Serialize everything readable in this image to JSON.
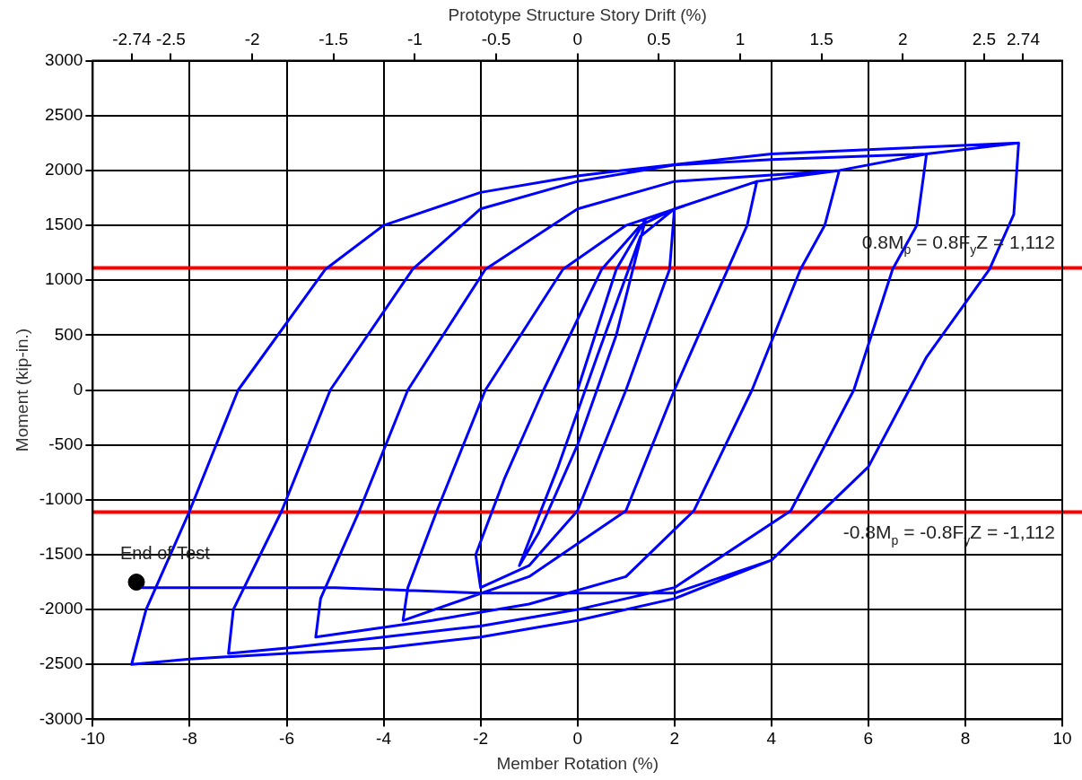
{
  "chart_data": {
    "type": "line",
    "xlabel": "Member Rotation (%)",
    "ylabel": "Moment (kip-in.)",
    "x2label": "Prototype Structure Story Drift (%)",
    "xlim": [
      -10,
      10
    ],
    "xticks": [
      -10,
      -8,
      -6,
      -4,
      -2,
      0,
      2,
      4,
      6,
      8,
      10
    ],
    "x2lim": [
      -2.98,
      2.98
    ],
    "x2ticks": [
      -2.74,
      -2.5,
      -2,
      -1.5,
      -1,
      -0.5,
      0,
      0.5,
      1,
      1.5,
      2,
      2.5,
      2.74
    ],
    "ylim": [
      -3000,
      3000
    ],
    "yticks": [
      -3000,
      -2500,
      -2000,
      -1500,
      -1000,
      -500,
      0,
      500,
      1000,
      1500,
      2000,
      2500,
      3000
    ],
    "grid": true,
    "line_style": "solid",
    "series": [
      {
        "color": "#0000ff",
        "marker": "none",
        "x": [
          0,
          0.8,
          1.4,
          0.8,
          0,
          -0.8,
          -1.2,
          -0.4,
          0.4,
          1.3,
          2,
          1.9,
          1,
          0,
          -1,
          -2,
          -2.1,
          -1.5,
          -0.7,
          0.5,
          1.3,
          2,
          3.7,
          3.5,
          3.1,
          2,
          1,
          -1,
          -3.6,
          -3.5,
          -2.9,
          -1.9,
          -0.3,
          1,
          3.7,
          5.4,
          5.1,
          4.6,
          3.6,
          2.4,
          1,
          -1,
          -3,
          -5.4,
          -5.3,
          -4.5,
          -3.5,
          -1.9,
          0,
          2,
          5.4,
          7.2,
          7,
          6.5,
          5.7,
          4.4,
          2,
          0,
          -2,
          -4,
          -6,
          -7.2,
          -7.1,
          -6.1,
          -5.1,
          -3.4,
          -2,
          0,
          2,
          4,
          7.2,
          9.1,
          9,
          8.5,
          7.2,
          6,
          4,
          2,
          0,
          -2,
          -4,
          -6,
          -8,
          -9.2,
          -8.9,
          -8,
          -7,
          -5.2,
          -4,
          -2,
          0,
          0.9,
          4,
          9.1,
          9,
          8.5,
          7.2,
          6,
          4,
          2,
          -2,
          -5,
          -9
        ],
        "values": [
          0,
          1100,
          1550,
          500,
          -500,
          -1300,
          -1600,
          -700,
          300,
          1400,
          1650,
          1100,
          0,
          -1100,
          -1600,
          -1800,
          -1500,
          -800,
          0,
          1100,
          1500,
          1650,
          1900,
          1500,
          1100,
          0,
          -1100,
          -1700,
          -2100,
          -1800,
          -1100,
          0,
          1100,
          1500,
          1900,
          2000,
          1500,
          1100,
          0,
          -1100,
          -1700,
          -1950,
          -2100,
          -2250,
          -1900,
          -1100,
          0,
          1100,
          1650,
          1900,
          2000,
          2150,
          1500,
          1100,
          0,
          -1100,
          -1800,
          -2000,
          -2150,
          -2250,
          -2350,
          -2400,
          -2000,
          -1100,
          0,
          1100,
          1650,
          1900,
          2050,
          2100,
          2150,
          2250,
          1600,
          1100,
          300,
          -700,
          -1550,
          -1900,
          -2100,
          -2250,
          -2350,
          -2400,
          -2450,
          -2500,
          -2000,
          -1100,
          0,
          1100,
          1500,
          1800,
          1950,
          2000,
          2150,
          2250,
          1600,
          1100,
          300,
          -700,
          -1550,
          -1850,
          -1850,
          -1800,
          -1800
        ]
      },
      {
        "type": "scatter",
        "color": "#000000",
        "marker": "circle",
        "x": [
          -9.1
        ],
        "values": [
          -1750
        ]
      }
    ],
    "ref_lines": [
      {
        "axis": "y",
        "value": 1112,
        "label": "0.8M$_{p}$ = 0.8F$_{y}$Z = 1,112",
        "color": "#ff0000"
      },
      {
        "axis": "y",
        "value": -1112,
        "label": "-0.8M$_{p}$ = -0.8F$_{y}$Z = -1,112",
        "color": "#ff0000"
      }
    ],
    "annotations": [
      {
        "text": "End of Test",
        "x": -9.1,
        "y": -1750
      }
    ]
  }
}
